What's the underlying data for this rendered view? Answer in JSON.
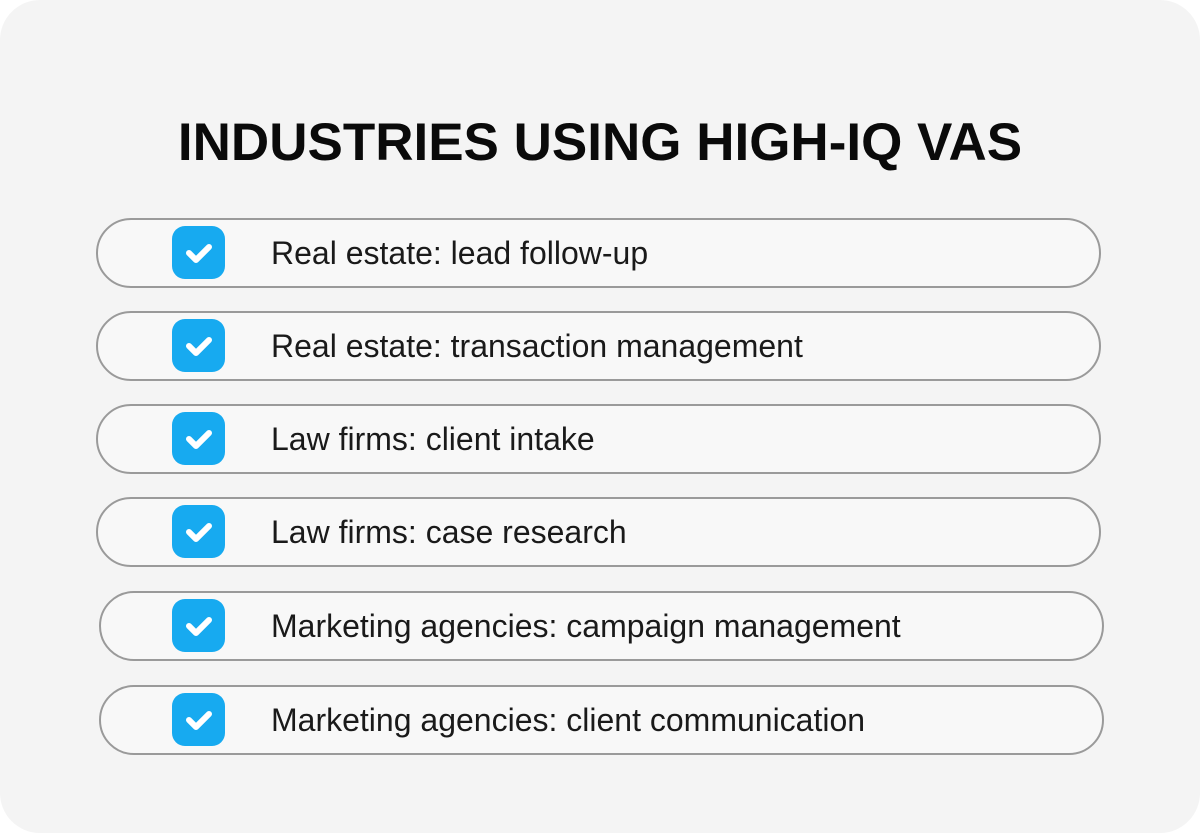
{
  "title": "INDUSTRIES USING HIGH-IQ VAS",
  "accent_color": "#17aaf0",
  "items": [
    {
      "label": "Real estate: lead follow-up",
      "icon": "checkbox-checked-icon"
    },
    {
      "label": "Real estate: transaction management",
      "icon": "checkbox-checked-icon"
    },
    {
      "label": "Law firms: client intake",
      "icon": "checkbox-checked-icon"
    },
    {
      "label": "Law firms: case research",
      "icon": "checkbox-checked-icon"
    },
    {
      "label": "Marketing agencies: campaign management",
      "icon": "checkbox-checked-icon"
    },
    {
      "label": "Marketing agencies: client communication",
      "icon": "checkbox-checked-icon"
    }
  ]
}
